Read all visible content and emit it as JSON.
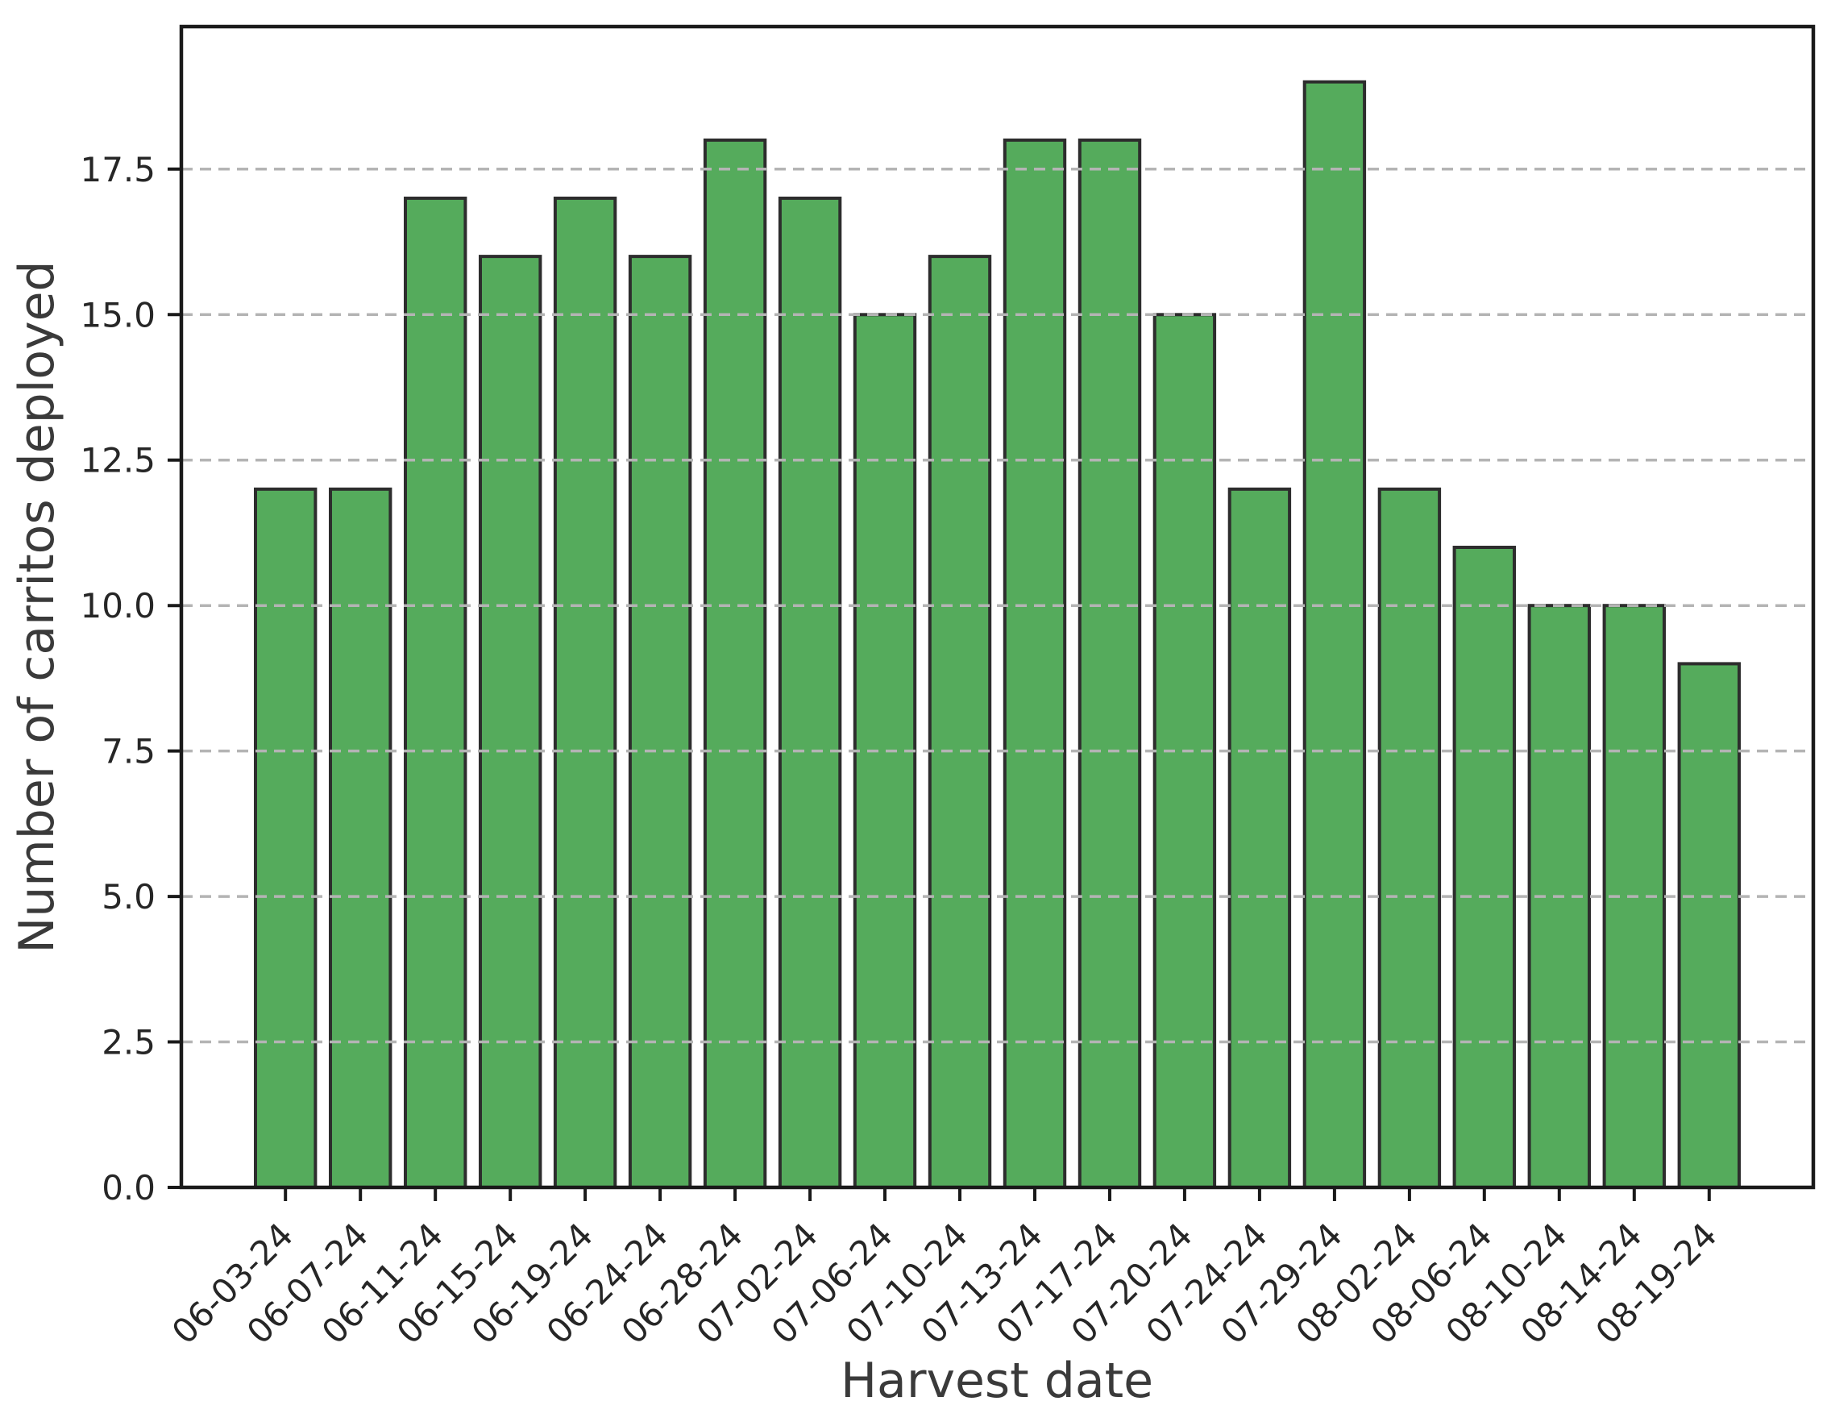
{
  "chart_data": {
    "type": "bar",
    "title": "",
    "xlabel": "Harvest date",
    "ylabel": "Number of carritos deployed",
    "categories": [
      "06-03-24",
      "06-07-24",
      "06-11-24",
      "06-15-24",
      "06-19-24",
      "06-24-24",
      "06-28-24",
      "07-02-24",
      "07-06-24",
      "07-10-24",
      "07-13-24",
      "07-17-24",
      "07-20-24",
      "07-24-24",
      "07-29-24",
      "08-02-24",
      "08-06-24",
      "08-10-24",
      "08-14-24",
      "08-19-24"
    ],
    "values": [
      12,
      12,
      17,
      16,
      17,
      16,
      18,
      17,
      15,
      16,
      18,
      18,
      15,
      12,
      19,
      12,
      11,
      10,
      10,
      9
    ],
    "ytick_labels": [
      "0.0",
      "2.5",
      "5.0",
      "7.5",
      "10.0",
      "12.5",
      "15.0",
      "17.5"
    ],
    "yticks": [
      0,
      2.5,
      5,
      7.5,
      10,
      12.5,
      15,
      17.5
    ],
    "ylim": [
      0,
      19.95
    ],
    "xlim": [
      -1.39,
      20.39
    ],
    "bar_width": 0.8,
    "grid": "horizontal-dashed",
    "legend": "none",
    "colors": {
      "bar_fill": "#55ab5c",
      "bar_edge": "#2d2d2d",
      "grid_line": "#b4b4b4",
      "spine": "#1a1a1a",
      "tick_text": "#262626",
      "label_text": "#3a3a3a"
    }
  }
}
